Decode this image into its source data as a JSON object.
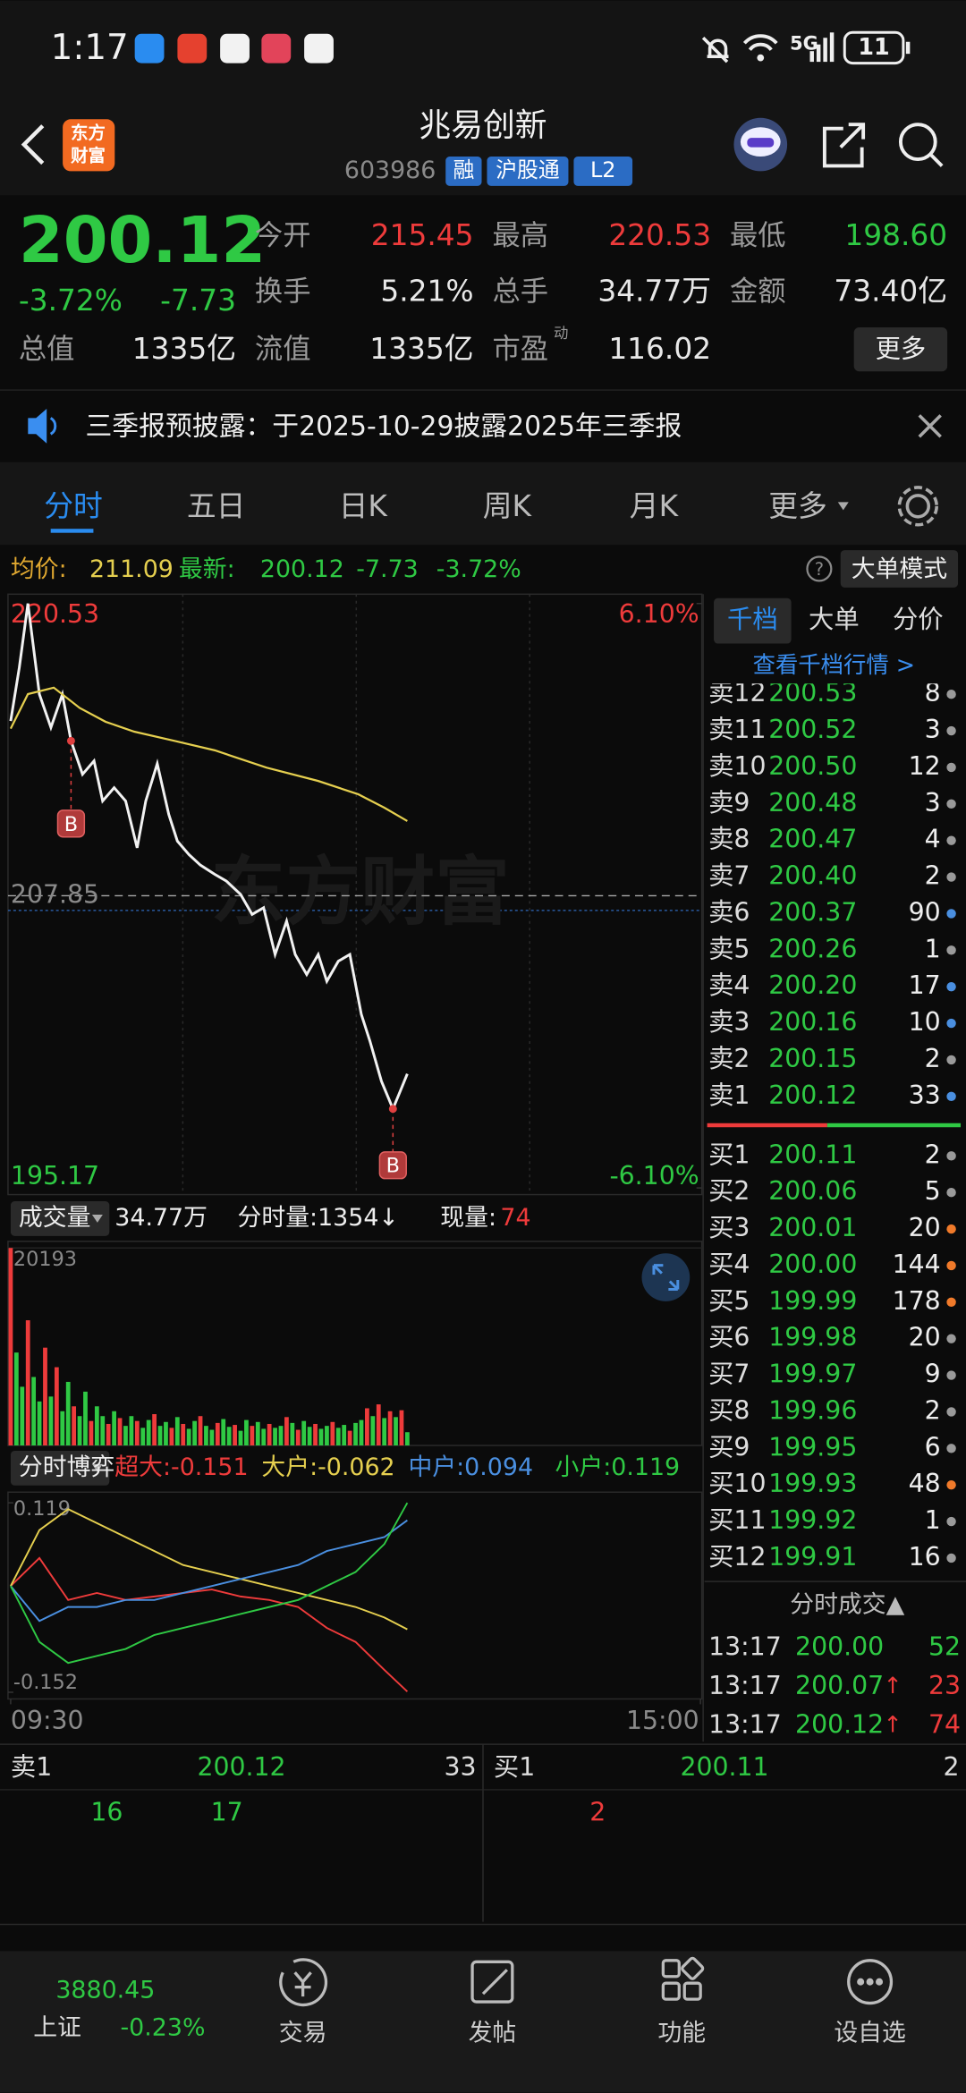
{
  "status_bar": {
    "time": "1:17",
    "network": "5G",
    "battery": "11"
  },
  "header": {
    "logo": [
      "东方",
      "财富"
    ],
    "title": "兆易创新",
    "code": "603986",
    "tags": [
      "融",
      "沪股通",
      "L2"
    ]
  },
  "quote": {
    "price": "200.12",
    "change_pct": "-3.72%",
    "change": "-7.73",
    "more": "更多",
    "fields": [
      {
        "label": "今开",
        "value": "215.45",
        "color": "#ee3b3b"
      },
      {
        "label": "最高",
        "value": "220.53",
        "color": "#ee3b3b"
      },
      {
        "label": "最低",
        "value": "198.60",
        "color": "#2fc944"
      },
      {
        "label": "换手",
        "value": "5.21%",
        "color": "#e8e8e8"
      },
      {
        "label": "总手",
        "value": "34.77万",
        "color": "#e8e8e8"
      },
      {
        "label": "金额",
        "value": "73.40亿",
        "color": "#e8e8e8"
      },
      {
        "label": "总值",
        "value": "1335亿",
        "color": "#e8e8e8"
      },
      {
        "label": "流值",
        "value": "1335亿",
        "color": "#e8e8e8"
      },
      {
        "label": "市盈",
        "superscript": "动",
        "value": "116.02",
        "color": "#e8e8e8"
      }
    ]
  },
  "notice": "三季报预披露：于2025-10-29披露2025年三季报",
  "tabs": [
    "分时",
    "五日",
    "日K",
    "周K",
    "月K",
    "更多"
  ],
  "info_bar": {
    "avg_label": "均价:",
    "avg": "211.09",
    "latest_label": "最新:",
    "latest": "200.12",
    "change": "-7.73",
    "change_pct": "-3.72%",
    "help": "?",
    "mode_button": "大单模式"
  },
  "intraday_chart": {
    "type": "line",
    "watermark": "东方财富",
    "xlim": [
      0,
      240
    ],
    "xticks": [
      {
        "value": 0,
        "label": "09:30"
      },
      {
        "value": 240,
        "label": "15:00"
      }
    ],
    "ylim": [
      195.17,
      220.53
    ],
    "yticks": [
      220.53,
      207.85,
      195.17
    ],
    "y2lim": [
      -6.1,
      6.1
    ],
    "y2ticks": [
      {
        "value": 6.1,
        "label": "6.10%"
      },
      {
        "value": -6.1,
        "label": "-6.10%"
      }
    ],
    "series": [
      {
        "color": "#f2f2f2",
        "x": [
          0,
          3,
          6,
          10,
          14,
          18,
          21,
          25,
          29,
          32,
          36,
          40,
          44,
          47,
          51,
          55,
          58,
          62,
          66,
          71,
          75,
          80,
          84,
          88,
          92,
          96,
          99,
          103,
          107,
          110,
          114,
          118,
          122,
          125,
          129,
          133,
          136,
          138
        ],
        "values": [
          215.43,
          217.75,
          220.53,
          216.59,
          215.15,
          216.59,
          214.57,
          213.12,
          213.7,
          211.96,
          212.54,
          211.96,
          209.93,
          211.96,
          213.58,
          211.38,
          210.22,
          209.64,
          209.18,
          208.78,
          208.49,
          207.91,
          207.04,
          207.33,
          205.3,
          206.75,
          205.3,
          204.43,
          205.3,
          204.14,
          205.01,
          205.3,
          202.7,
          201.54,
          199.8,
          198.6,
          199.51,
          200.12
        ]
      },
      {
        "color": "#e5cf4f",
        "x": [
          0,
          6,
          15,
          24,
          33,
          43,
          57,
          71,
          89,
          107,
          121,
          130,
          138
        ],
        "values": [
          215.1,
          216.6,
          216.88,
          216.0,
          215.4,
          214.97,
          214.57,
          214.16,
          213.41,
          212.83,
          212.25,
          211.67,
          211.09
        ]
      }
    ],
    "annotations": [
      {
        "label": "B",
        "x": 21,
        "y": 214.57
      },
      {
        "label": "B",
        "x": 133,
        "y": 198.6
      }
    ]
  },
  "volume_chart": {
    "type": "bar",
    "label": "成交量",
    "total": "34.77万",
    "minute_volume": "分时量:1354↓",
    "current_label": "现量:",
    "current": "74",
    "xlim": [
      0,
      240
    ],
    "ylim": [
      0,
      20193
    ],
    "yticks": [
      20193
    ],
    "series": [
      {
        "color": "#ee3b3b",
        "x": [
          0,
          6,
          12,
          16,
          22,
          28,
          34,
          38,
          44,
          50,
          56,
          60,
          66,
          72,
          78,
          84,
          90,
          96,
          100,
          106,
          112,
          118,
          124,
          128,
          132,
          136
        ],
        "values": [
          20193,
          12800,
          10000,
          8000,
          4000,
          2500,
          2200,
          2800,
          2500,
          3200,
          1800,
          2200,
          3000,
          2300,
          2100,
          2000,
          2200,
          2900,
          1600,
          2200,
          2400,
          1500,
          3800,
          4200,
          3500,
          3600
        ]
      },
      {
        "color": "#2fc944",
        "x": [
          2,
          4,
          8,
          10,
          14,
          18,
          20,
          24,
          26,
          30,
          32,
          36,
          40,
          42,
          46,
          48,
          52,
          54,
          58,
          62,
          64,
          68,
          70,
          74,
          76,
          80,
          82,
          86,
          88,
          92,
          94,
          98,
          102,
          104,
          108,
          110,
          114,
          116,
          120,
          122,
          126,
          130,
          134,
          138
        ],
        "values": [
          9500,
          6000,
          7000,
          4500,
          5000,
          3500,
          6500,
          3000,
          5500,
          4000,
          3000,
          3500,
          2000,
          3000,
          1800,
          2600,
          2000,
          2400,
          2900,
          1700,
          2500,
          2000,
          1600,
          2700,
          1900,
          1500,
          2600,
          2400,
          1700,
          1800,
          2000,
          2300,
          2500,
          1900,
          1700,
          2000,
          1800,
          2100,
          2300,
          2600,
          3000,
          2800,
          2900,
          1354
        ]
      }
    ]
  },
  "flow_chart": {
    "type": "line",
    "label": "分时博弈",
    "xlim": [
      0,
      240
    ],
    "ylim": [
      -0.152,
      0.119
    ],
    "yticks": [
      0.119,
      -0.152
    ],
    "x": [
      0,
      10,
      20,
      30,
      40,
      50,
      60,
      70,
      80,
      90,
      100,
      110,
      120,
      130,
      138
    ],
    "series": [
      {
        "name": "超大:-0.151",
        "color": "#ee3b3b",
        "values": [
          0.0,
          0.04,
          -0.02,
          -0.01,
          -0.02,
          -0.015,
          -0.01,
          -0.005,
          -0.015,
          -0.02,
          -0.03,
          -0.06,
          -0.08,
          -0.12,
          -0.151
        ]
      },
      {
        "name": "大户:-0.062",
        "color": "#e5cf4f",
        "values": [
          0.0,
          0.08,
          0.11,
          0.09,
          0.07,
          0.05,
          0.03,
          0.02,
          0.01,
          0.0,
          -0.01,
          -0.02,
          -0.03,
          -0.045,
          -0.062
        ]
      },
      {
        "name": "中户:0.094",
        "color": "#4a8fe0",
        "values": [
          0.0,
          -0.05,
          -0.03,
          -0.03,
          -0.02,
          -0.02,
          -0.01,
          0.0,
          0.01,
          0.02,
          0.03,
          0.05,
          0.06,
          0.07,
          0.094
        ]
      },
      {
        "name": "小户:0.119",
        "color": "#2fc944",
        "values": [
          0.0,
          -0.08,
          -0.11,
          -0.1,
          -0.09,
          -0.07,
          -0.06,
          -0.05,
          -0.04,
          -0.03,
          -0.02,
          0.0,
          0.02,
          0.06,
          0.119
        ]
      }
    ]
  },
  "order_book": {
    "tabs": [
      "千档",
      "大单",
      "分价"
    ],
    "link": "查看千档行情 >",
    "asks": [
      {
        "label": "卖12",
        "price": "200.53",
        "volume": "8",
        "dot": "#9a9a9a"
      },
      {
        "label": "卖11",
        "price": "200.52",
        "volume": "3",
        "dot": "#9a9a9a"
      },
      {
        "label": "卖10",
        "price": "200.50",
        "volume": "12",
        "dot": "#9a9a9a"
      },
      {
        "label": "卖9",
        "price": "200.48",
        "volume": "3",
        "dot": "#9a9a9a"
      },
      {
        "label": "卖8",
        "price": "200.47",
        "volume": "4",
        "dot": "#9a9a9a"
      },
      {
        "label": "卖7",
        "price": "200.40",
        "volume": "2",
        "dot": "#9a9a9a"
      },
      {
        "label": "卖6",
        "price": "200.37",
        "volume": "90",
        "dot": "#4a8fe0"
      },
      {
        "label": "卖5",
        "price": "200.26",
        "volume": "1",
        "dot": "#9a9a9a"
      },
      {
        "label": "卖4",
        "price": "200.20",
        "volume": "17",
        "dot": "#4a8fe0"
      },
      {
        "label": "卖3",
        "price": "200.16",
        "volume": "10",
        "dot": "#4a8fe0"
      },
      {
        "label": "卖2",
        "price": "200.15",
        "volume": "2",
        "dot": "#9a9a9a"
      },
      {
        "label": "卖1",
        "price": "200.12",
        "volume": "33",
        "dot": "#4a8fe0"
      }
    ],
    "bids": [
      {
        "label": "买1",
        "price": "200.11",
        "volume": "2",
        "dot": "#9a9a9a"
      },
      {
        "label": "买2",
        "price": "200.06",
        "volume": "5",
        "dot": "#9a9a9a"
      },
      {
        "label": "买3",
        "price": "200.01",
        "volume": "20",
        "dot": "#f07a2a"
      },
      {
        "label": "买4",
        "price": "200.00",
        "volume": "144",
        "dot": "#f07a2a"
      },
      {
        "label": "买5",
        "price": "199.99",
        "volume": "178",
        "dot": "#f07a2a"
      },
      {
        "label": "买6",
        "price": "199.98",
        "volume": "20",
        "dot": "#9a9a9a"
      },
      {
        "label": "买7",
        "price": "199.97",
        "volume": "9",
        "dot": "#9a9a9a"
      },
      {
        "label": "买8",
        "price": "199.96",
        "volume": "2",
        "dot": "#9a9a9a"
      },
      {
        "label": "买9",
        "price": "199.95",
        "volume": "6",
        "dot": "#9a9a9a"
      },
      {
        "label": "买10",
        "price": "199.93",
        "volume": "48",
        "dot": "#f07a2a"
      },
      {
        "label": "买11",
        "price": "199.92",
        "volume": "1",
        "dot": "#9a9a9a"
      },
      {
        "label": "买12",
        "price": "199.91",
        "volume": "16",
        "dot": "#9a9a9a"
      }
    ],
    "trades_title": "分时成交▲",
    "trades": [
      {
        "time": "13:17",
        "price": "200.00",
        "volume": "52",
        "color": "#2fc944"
      },
      {
        "time": "13:17",
        "price": "200.07",
        "arrow": "↑",
        "volume": "23",
        "color": "#ee3b3b"
      },
      {
        "time": "13:17",
        "price": "200.12",
        "arrow": "↑",
        "volume": "74",
        "color": "#ee3b3b"
      }
    ]
  },
  "bottom_quote": {
    "ask": {
      "label": "卖1",
      "price": "200.12",
      "volume": "33"
    },
    "bid": {
      "label": "买1",
      "price": "200.11",
      "volume": "2"
    },
    "ask_details": [
      "16",
      "17"
    ],
    "bid_details": [
      "2"
    ]
  },
  "nav": {
    "index_value": "3880.45",
    "index_name": "上证",
    "index_change": "-0.23%",
    "items": [
      "交易",
      "发帖",
      "功能",
      "设自选"
    ]
  }
}
